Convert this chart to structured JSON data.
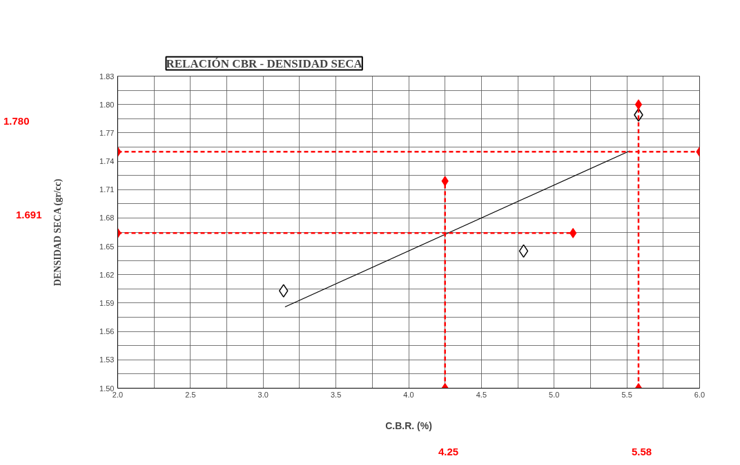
{
  "chart_data": {
    "type": "scatter",
    "title": "RELACIÓN CBR - DENSIDAD SECA",
    "xlabel": "C.B.R. (%)",
    "ylabel": "DENSIDAD SECA (gr/cc)",
    "xlim": [
      2.0,
      6.0
    ],
    "ylim": [
      1.5,
      1.83
    ],
    "xticks": [
      {
        "value": 2.0,
        "label": "2.0"
      },
      {
        "value": 2.25,
        "label": null
      },
      {
        "value": 2.5,
        "label": "2.5"
      },
      {
        "value": 2.75,
        "label": null
      },
      {
        "value": 3.0,
        "label": "3.0"
      },
      {
        "value": 3.25,
        "label": null
      },
      {
        "value": 3.5,
        "label": "3.5"
      },
      {
        "value": 3.75,
        "label": null
      },
      {
        "value": 4.0,
        "label": "4.0"
      },
      {
        "value": 4.25,
        "label": null
      },
      {
        "value": 4.5,
        "label": "4.5"
      },
      {
        "value": 4.75,
        "label": null
      },
      {
        "value": 5.0,
        "label": "5.0"
      },
      {
        "value": 5.25,
        "label": null
      },
      {
        "value": 5.5,
        "label": "5.5"
      },
      {
        "value": 5.75,
        "label": null
      },
      {
        "value": 6.0,
        "label": "6.0"
      }
    ],
    "yticks": [
      {
        "value": 1.5,
        "label": "1.50"
      },
      {
        "value": 1.515,
        "label": null
      },
      {
        "value": 1.53,
        "label": "1.53"
      },
      {
        "value": 1.545,
        "label": null
      },
      {
        "value": 1.56,
        "label": "1.56"
      },
      {
        "value": 1.575,
        "label": null
      },
      {
        "value": 1.59,
        "label": "1.59"
      },
      {
        "value": 1.605,
        "label": null
      },
      {
        "value": 1.62,
        "label": "1.62"
      },
      {
        "value": 1.635,
        "label": null
      },
      {
        "value": 1.65,
        "label": "1.65"
      },
      {
        "value": 1.665,
        "label": null
      },
      {
        "value": 1.68,
        "label": "1.68"
      },
      {
        "value": 1.695,
        "label": null
      },
      {
        "value": 1.71,
        "label": "1.71"
      },
      {
        "value": 1.725,
        "label": null
      },
      {
        "value": 1.74,
        "label": "1.74"
      },
      {
        "value": 1.755,
        "label": null
      },
      {
        "value": 1.77,
        "label": "1.77"
      },
      {
        "value": 1.785,
        "label": null
      },
      {
        "value": 1.8,
        "label": "1.80"
      },
      {
        "value": 1.815,
        "label": null
      },
      {
        "value": 1.83,
        "label": "1.83"
      }
    ],
    "grid": true,
    "series": [
      {
        "marker": "diamond",
        "color": "#000000",
        "x": [
          3.14,
          4.79,
          5.58
        ],
        "values": [
          1.603,
          1.645,
          1.789
        ]
      },
      {
        "type": "line",
        "line_style": "solid",
        "marker": "none",
        "color": "#000000",
        "x": [
          3.15,
          5.52
        ],
        "values": [
          1.586,
          1.751
        ]
      },
      {
        "type": "line",
        "line_style": "dashed",
        "marker": "diamond",
        "color": "#ff0000",
        "x": [
          2.0,
          6.0
        ],
        "values": [
          1.75,
          1.75
        ]
      },
      {
        "type": "line",
        "line_style": "dashed",
        "marker": "diamond",
        "color": "#ff0000",
        "x": [
          2.0,
          5.13
        ],
        "values": [
          1.664,
          1.664
        ]
      },
      {
        "type": "line",
        "line_style": "dashed",
        "marker": "diamond",
        "color": "#ff0000",
        "x": [
          4.25,
          4.25
        ],
        "values": [
          1.5,
          1.719
        ]
      },
      {
        "type": "line",
        "line_style": "dashed",
        "marker": "diamond",
        "color": "#ff0000",
        "x": [
          5.58,
          5.58
        ],
        "values": [
          1.5,
          1.8
        ]
      }
    ],
    "annotations": [
      "1.780",
      "1.691",
      "4.25",
      "5.58"
    ]
  }
}
